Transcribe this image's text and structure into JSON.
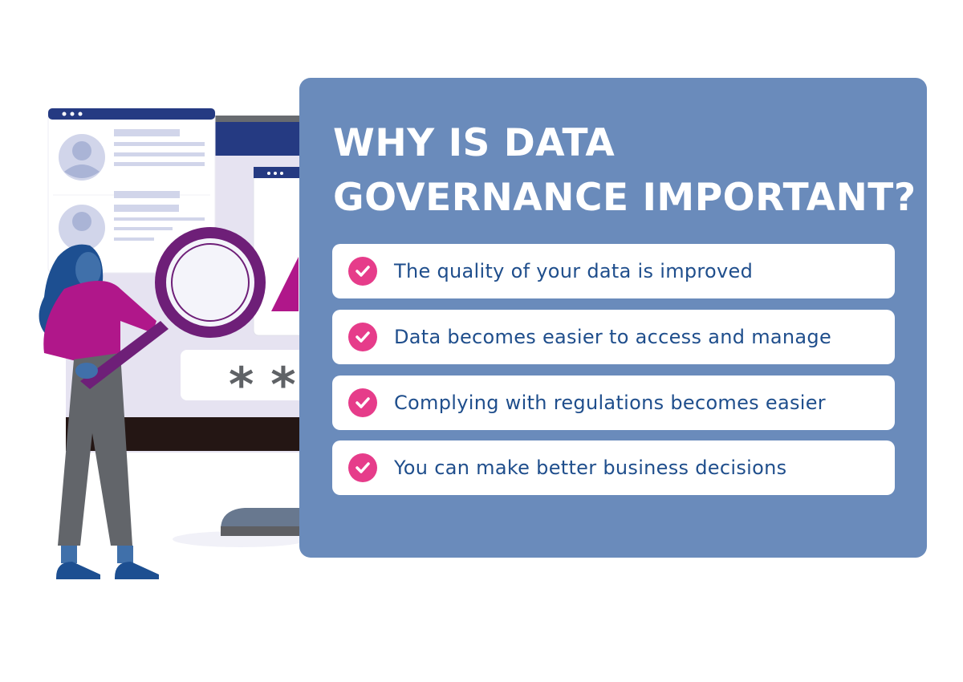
{
  "infographic": {
    "title_line1": "WHY IS DATA",
    "title_line2": "GOVERNANCE IMPORTANT?",
    "items": [
      {
        "label": "The quality of your data is improved",
        "icon": "check-circle-icon"
      },
      {
        "label": "Data becomes easier to access and manage",
        "icon": "check-circle-icon"
      },
      {
        "label": "Complying with regulations becomes easier",
        "icon": "check-circle-icon"
      },
      {
        "label": "You can make better business decisions",
        "icon": "check-circle-icon"
      }
    ],
    "illustration": {
      "password_mask": "* *"
    }
  },
  "colors": {
    "panel": "#6a8bbb",
    "accent": "#e63c8a",
    "text": "#1f4e8c",
    "navy": "#253a82",
    "purple": "#6e1f78",
    "magenta": "#b0178a"
  }
}
